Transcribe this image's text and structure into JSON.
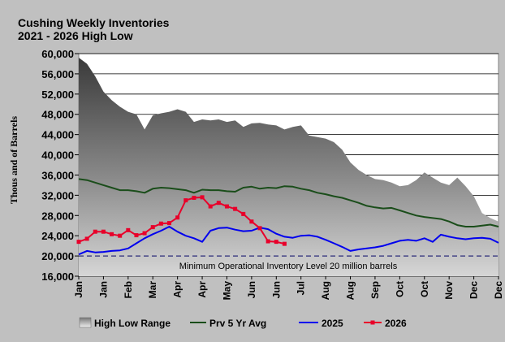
{
  "chart_data": {
    "type": "area",
    "title": "Cushing Weekly Inventories",
    "subtitle": "2021 - 2026 High Low",
    "ylabel": "Thous and of Barrels",
    "xlabel": "",
    "ylim": [
      16000,
      60000
    ],
    "yticks": [
      16000,
      20000,
      24000,
      28000,
      32000,
      36000,
      40000,
      44000,
      48000,
      52000,
      56000,
      60000
    ],
    "ytick_labels": [
      "16,000",
      "20,000",
      "24,000",
      "28,000",
      "32,000",
      "36,000",
      "40,000",
      "44,000",
      "48,000",
      "52,000",
      "56,000",
      "60,000"
    ],
    "x_tick_labels": [
      "Jan",
      "Jan",
      "Feb",
      "Mar",
      "Apr",
      "Apr",
      "May",
      "Jun",
      "Jun",
      "Jul",
      "Aug",
      "Aug",
      "Sep",
      "Oct",
      "Oct",
      "Nov",
      "Dec",
      "Dec"
    ],
    "grid": "horizontal",
    "legend_position": "bottom",
    "annotation": "Minimum Operational Inventory Level 20 million barrels",
    "min_operational_level": 20000,
    "weeks": 52,
    "legend": [
      "High Low Range",
      "Prv 5 Yr Avg",
      "2025",
      "2026"
    ],
    "series": [
      {
        "name": "High Low Range",
        "kind": "range",
        "color": "#555555",
        "high": [
          59200,
          58000,
          55500,
          52500,
          50800,
          49500,
          48500,
          48000,
          45000,
          47800,
          48200,
          48500,
          49000,
          48500,
          46500,
          47000,
          46800,
          47000,
          46500,
          46800,
          45500,
          46200,
          46300,
          46000,
          45800,
          45000,
          45500,
          45800,
          43800,
          43500,
          43200,
          42500,
          41000,
          38500,
          37000,
          36000,
          35200,
          35000,
          34500,
          33800,
          34000,
          35000,
          36500,
          35500,
          34500,
          34000,
          35500,
          33800,
          31800,
          28500,
          27500,
          26800
        ]
      },
      {
        "name": "Prv 5 Yr Avg",
        "kind": "line",
        "color": "#1a4d1a",
        "values": [
          35200,
          35000,
          34500,
          34000,
          33500,
          33000,
          33000,
          32800,
          32500,
          33300,
          33500,
          33400,
          33200,
          33000,
          32500,
          33100,
          33000,
          33000,
          32800,
          32700,
          33500,
          33700,
          33300,
          33500,
          33400,
          33800,
          33700,
          33300,
          33000,
          32500,
          32200,
          31800,
          31500,
          31000,
          30500,
          29900,
          29600,
          29400,
          29500,
          29000,
          28500,
          28000,
          27700,
          27500,
          27300,
          26800,
          26100,
          25800,
          25800,
          26000,
          26200,
          25800
        ]
      },
      {
        "name": "2025",
        "kind": "line",
        "color": "#0000ee",
        "values": [
          20300,
          21000,
          20700,
          20800,
          21000,
          21100,
          21500,
          22500,
          23500,
          24300,
          25000,
          25800,
          24800,
          24000,
          23500,
          22800,
          25000,
          25500,
          25600,
          25200,
          24900,
          25000,
          25600,
          25300,
          24400,
          23800,
          23600,
          24000,
          24100,
          23800,
          23200,
          22500,
          21800,
          21000,
          21300,
          21500,
          21700,
          22000,
          22500,
          23000,
          23200,
          23000,
          23500,
          22800,
          24200,
          23800,
          23500,
          23300,
          23500,
          23600,
          23400,
          22600
        ]
      },
      {
        "name": "2026",
        "kind": "line",
        "color": "#e8002a",
        "values": [
          22800,
          23400,
          24800,
          24800,
          24300,
          24000,
          25100,
          24100,
          24500,
          25700,
          26400,
          26500,
          27600,
          31000,
          31500,
          31600,
          29800,
          30500,
          29800,
          29300,
          28300,
          26800,
          25500,
          22900,
          22800,
          22400
        ]
      }
    ]
  }
}
